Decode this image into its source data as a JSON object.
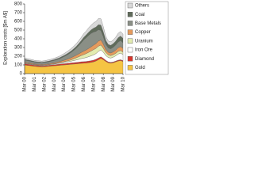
{
  "chart_data": {
    "type": "stacked-area",
    "y_label": "Exploration costs [$m A$]",
    "categories": [
      "Mar 00",
      null,
      null,
      null,
      "Mar 01",
      null,
      null,
      null,
      "Mar 02",
      null,
      null,
      null,
      "Mar 03",
      null,
      null,
      null,
      "Mar 04",
      null,
      null,
      null,
      "Mar 05",
      null,
      null,
      null,
      "Mar 06",
      null,
      null,
      null,
      "Mar 07",
      null,
      null,
      null,
      "Mar 08",
      null,
      null,
      null,
      "Mar 09",
      null,
      null,
      null,
      "Mar 10"
    ],
    "ylim": [
      0,
      800
    ],
    "yticks": [
      0,
      100,
      200,
      300,
      400,
      500,
      600,
      700,
      800
    ],
    "legend": "right",
    "series": [
      {
        "name": "Others",
        "color": "#d9d9d9",
        "values": [
          15,
          15,
          14,
          14,
          13,
          13,
          13,
          13,
          13,
          14,
          14,
          15,
          16,
          17,
          18,
          20,
          22,
          24,
          26,
          28,
          30,
          32,
          35,
          38,
          42,
          45,
          50,
          55,
          60,
          65,
          70,
          72,
          60,
          45,
          40,
          40,
          42,
          45,
          50,
          52,
          50
        ]
      },
      {
        "name": "Coal",
        "color": "#5f6b5a",
        "values": [
          8,
          8,
          8,
          8,
          7,
          7,
          7,
          7,
          7,
          8,
          8,
          8,
          9,
          10,
          11,
          12,
          13,
          14,
          15,
          16,
          18,
          20,
          22,
          25,
          28,
          32,
          36,
          40,
          45,
          50,
          58,
          62,
          55,
          45,
          40,
          40,
          42,
          45,
          50,
          52,
          50
        ]
      },
      {
        "name": "Base Metals",
        "color": "#8a8f86",
        "values": [
          25,
          24,
          23,
          22,
          21,
          20,
          20,
          20,
          21,
          22,
          23,
          25,
          27,
          30,
          33,
          37,
          42,
          48,
          55,
          62,
          70,
          80,
          95,
          110,
          130,
          140,
          150,
          155,
          150,
          140,
          130,
          110,
          85,
          60,
          50,
          48,
          52,
          58,
          65,
          70,
          65
        ]
      },
      {
        "name": "Copper",
        "color": "#e59a5c",
        "values": [
          10,
          10,
          9,
          9,
          8,
          8,
          8,
          8,
          8,
          9,
          9,
          10,
          11,
          12,
          13,
          15,
          17,
          19,
          22,
          25,
          28,
          30,
          33,
          36,
          40,
          42,
          45,
          48,
          52,
          55,
          60,
          58,
          48,
          35,
          30,
          30,
          33,
          38,
          42,
          45,
          42
        ]
      },
      {
        "name": "Uranium",
        "color": "#e3ecb0",
        "values": [
          2,
          2,
          2,
          2,
          2,
          2,
          2,
          2,
          2,
          2,
          2,
          3,
          3,
          4,
          5,
          6,
          8,
          10,
          12,
          15,
          20,
          25,
          30,
          35,
          40,
          45,
          50,
          55,
          60,
          60,
          60,
          55,
          45,
          35,
          30,
          28,
          28,
          28,
          30,
          30,
          28
        ]
      },
      {
        "name": "Iron Ore",
        "color": "#ffffff",
        "values": [
          5,
          5,
          5,
          5,
          5,
          5,
          5,
          5,
          6,
          6,
          6,
          7,
          8,
          9,
          10,
          12,
          14,
          16,
          18,
          20,
          24,
          28,
          32,
          36,
          40,
          45,
          50,
          55,
          60,
          65,
          75,
          80,
          70,
          55,
          50,
          50,
          55,
          60,
          70,
          75,
          70
        ]
      },
      {
        "name": "Diamond",
        "color": "#d9352b",
        "values": [
          15,
          14,
          14,
          13,
          12,
          12,
          12,
          11,
          11,
          11,
          12,
          12,
          12,
          13,
          13,
          14,
          14,
          15,
          15,
          16,
          16,
          17,
          17,
          18,
          18,
          18,
          19,
          19,
          20,
          20,
          20,
          18,
          16,
          12,
          10,
          9,
          9,
          9,
          10,
          10,
          10
        ]
      },
      {
        "name": "Gold",
        "color": "#f5c443",
        "values": [
          100,
          95,
          92,
          88,
          85,
          82,
          80,
          78,
          80,
          82,
          85,
          88,
          90,
          92,
          95,
          98,
          100,
          102,
          105,
          108,
          110,
          112,
          115,
          118,
          120,
          122,
          125,
          130,
          135,
          145,
          160,
          175,
          160,
          140,
          125,
          120,
          125,
          135,
          145,
          150,
          140
        ]
      }
    ]
  }
}
